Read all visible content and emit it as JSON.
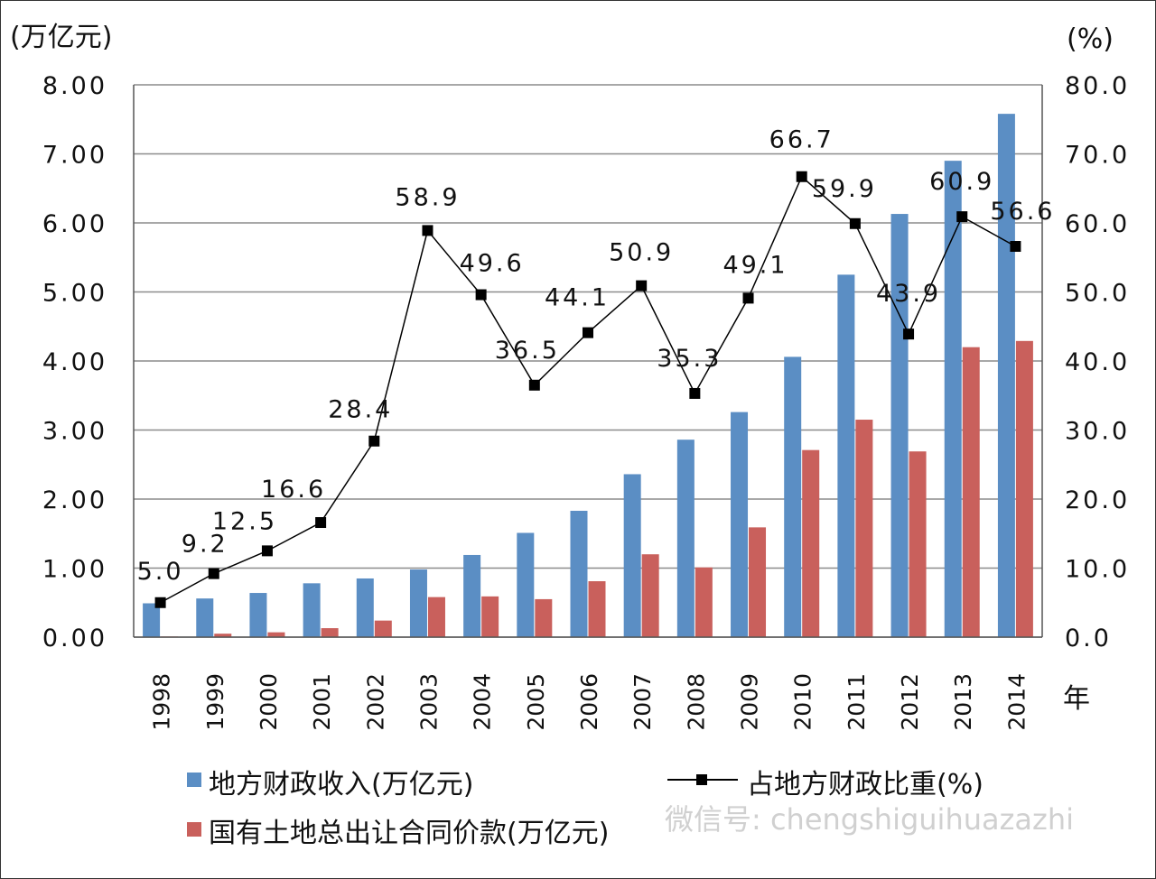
{
  "chart_data": {
    "type": "bar",
    "categories": [
      "1998",
      "1999",
      "2000",
      "2001",
      "2002",
      "2003",
      "2004",
      "2005",
      "2006",
      "2007",
      "2008",
      "2009",
      "2010",
      "2011",
      "2012",
      "2013",
      "2014"
    ],
    "y_left": {
      "unit_label": "(万亿元)",
      "range": [
        0,
        8
      ],
      "ticks": [
        "0.00",
        "1.00",
        "2.00",
        "3.00",
        "4.00",
        "5.00",
        "6.00",
        "7.00",
        "8.00"
      ]
    },
    "y_right": {
      "unit_label": "(%)",
      "range": [
        0,
        80
      ],
      "ticks": [
        "0.0",
        "10.0",
        "20.0",
        "30.0",
        "40.0",
        "50.0",
        "60.0",
        "70.0",
        "80.0"
      ]
    },
    "x_unit_label": "年",
    "grid": "horizontal",
    "legend_position": "bottom",
    "series": [
      {
        "name": "地方财政收入(万亿元)",
        "type": "bar",
        "axis": "left",
        "color": "#5b8ec4",
        "values": [
          0.49,
          0.56,
          0.64,
          0.78,
          0.85,
          0.98,
          1.19,
          1.51,
          1.83,
          2.36,
          2.86,
          3.26,
          4.06,
          5.25,
          6.13,
          6.9,
          7.58
        ]
      },
      {
        "name": "国有土地总出让合同价款(万亿元)",
        "type": "bar",
        "axis": "left",
        "color": "#c9605c",
        "values": [
          0.01,
          0.05,
          0.07,
          0.13,
          0.24,
          0.58,
          0.59,
          0.55,
          0.81,
          1.2,
          1.01,
          1.59,
          2.71,
          3.15,
          2.69,
          4.2,
          4.29
        ]
      },
      {
        "name": "占地方财政比重(%)",
        "type": "line",
        "axis": "right",
        "color": "#000000",
        "values": [
          5.0,
          9.2,
          12.5,
          16.6,
          28.4,
          58.9,
          49.6,
          36.5,
          44.1,
          50.9,
          35.3,
          49.1,
          66.7,
          59.9,
          43.9,
          60.9,
          56.6
        ],
        "labels": [
          "5.0",
          "9.2",
          "12.5",
          "16.6",
          "28.4",
          "58.9",
          "49.6",
          "36.5",
          "44.1",
          "50.9",
          "35.3",
          "49.1",
          "66.7",
          "59.9",
          "43.9",
          "60.9",
          "56.6"
        ]
      }
    ],
    "watermark": "微信号: chengshiguihuazazhi"
  }
}
